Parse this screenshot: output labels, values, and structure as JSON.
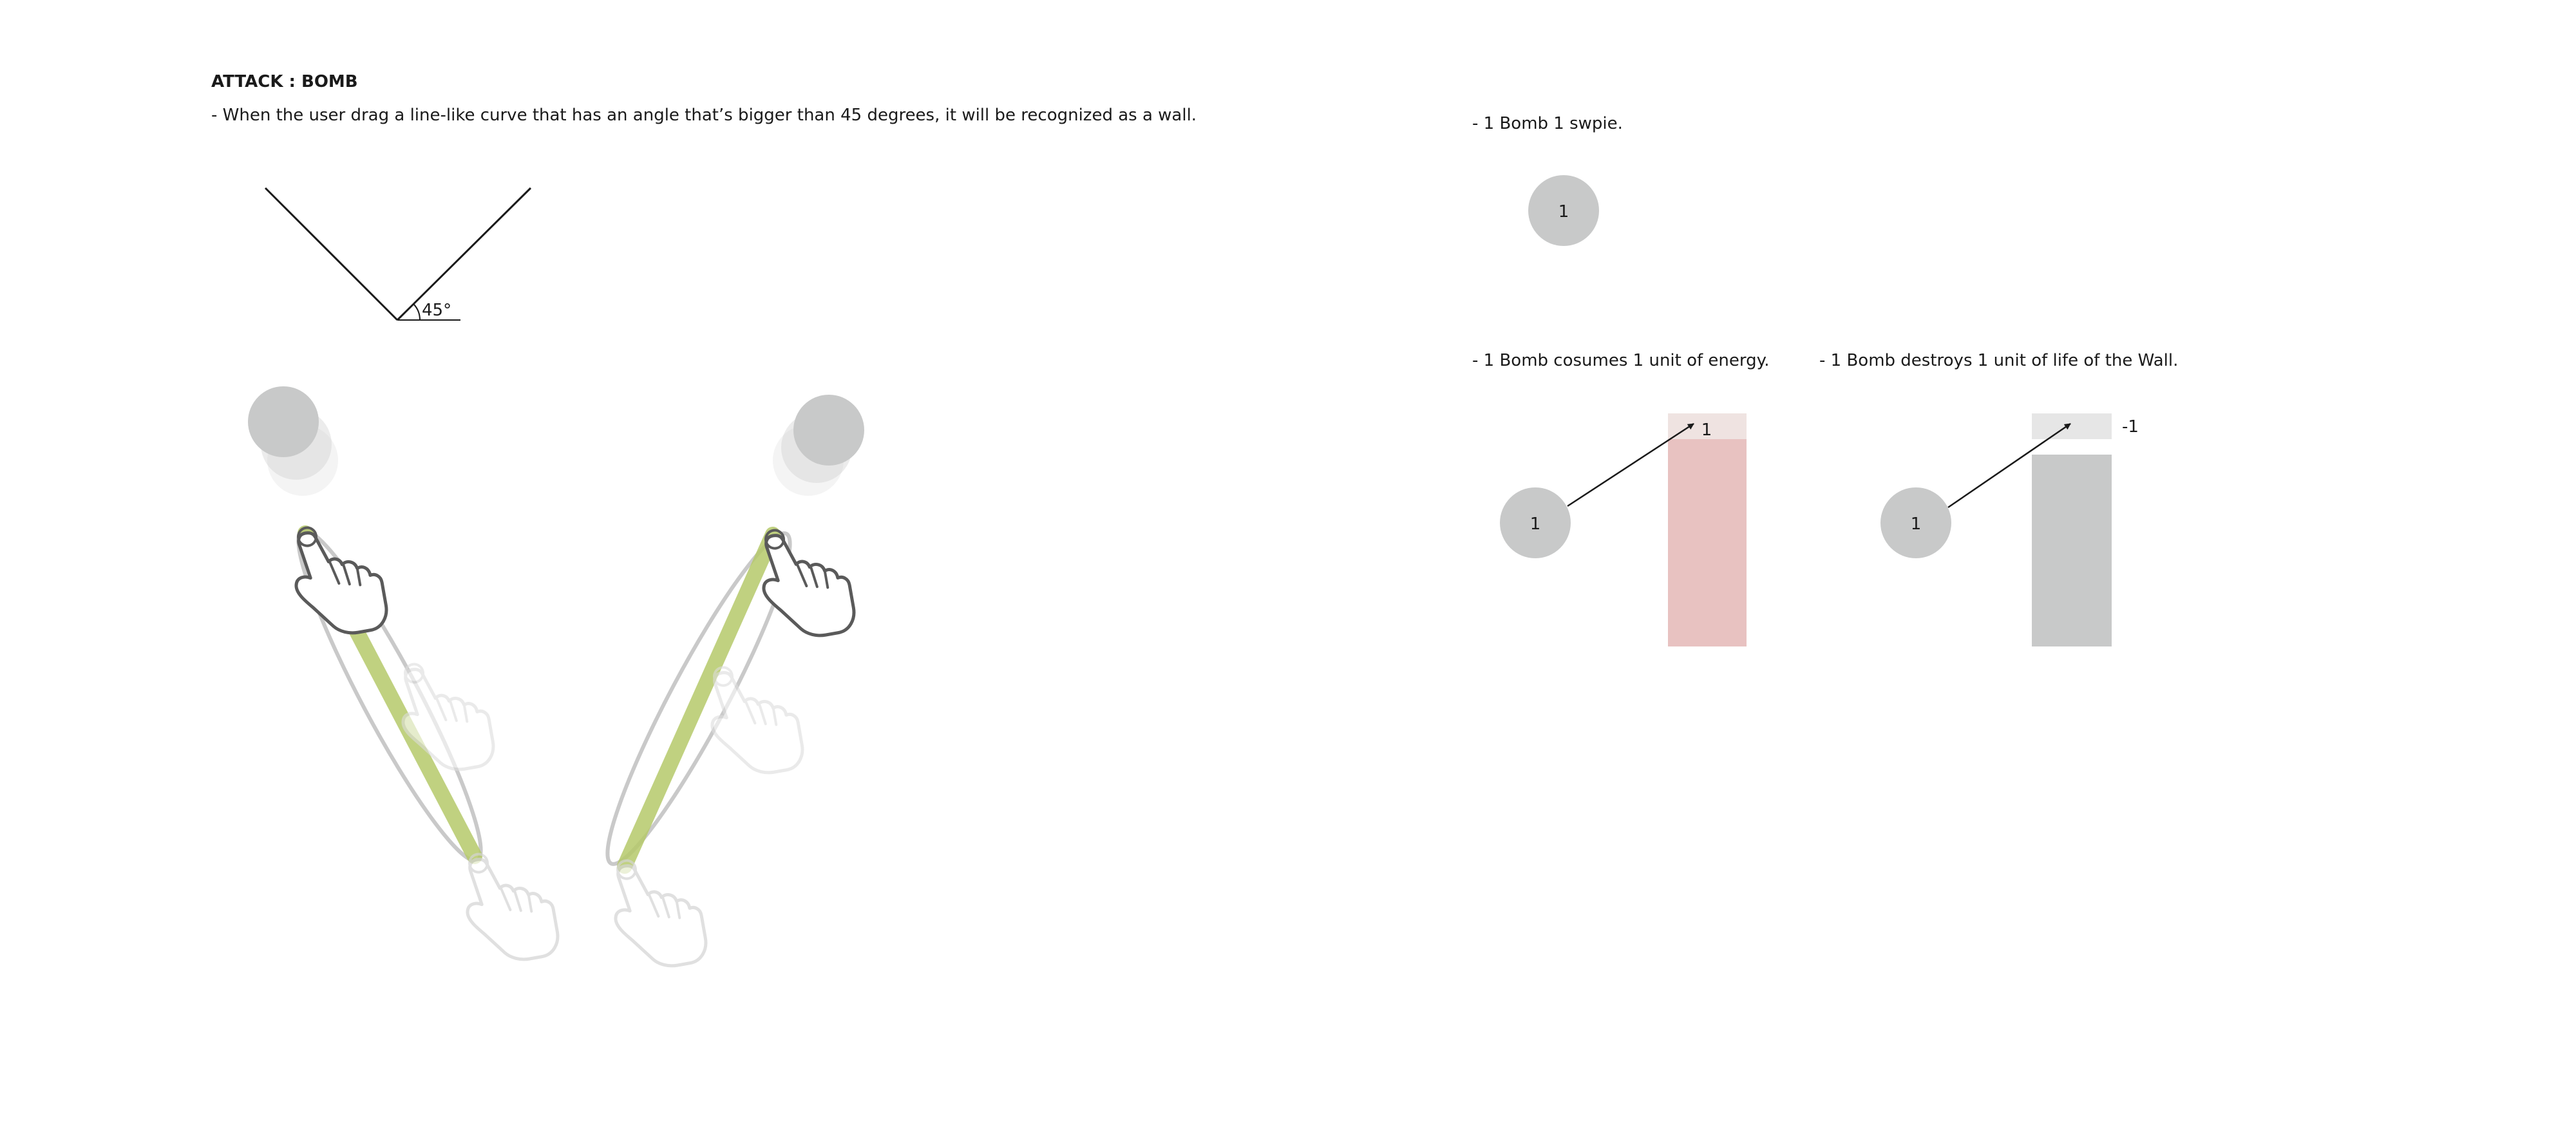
{
  "heading": "ATTACK :  BOMB",
  "description": "-  When the user drag a line-like curve that has an angle that’s bigger than 45 degrees, it will be recognized as a wall.",
  "angle_label": "45°",
  "notes": {
    "swipe": "-  1 Bomb 1 swpie.",
    "energy": "-  1 Bomb cosumes 1 unit of energy.",
    "wall": "-  1 Bomb destroys 1 unit of life of the Wall."
  },
  "bomb_label": "1",
  "energy_value": "1",
  "wall_delta": "-1",
  "colors": {
    "bomb": "#c8c9c9",
    "stroke_green": "#b6c96a",
    "energy_bar": "#e8c2c1",
    "energy_top": "#efe3e1",
    "wall_bar": "#c8c9c9",
    "wall_top": "#e6e6e6"
  }
}
